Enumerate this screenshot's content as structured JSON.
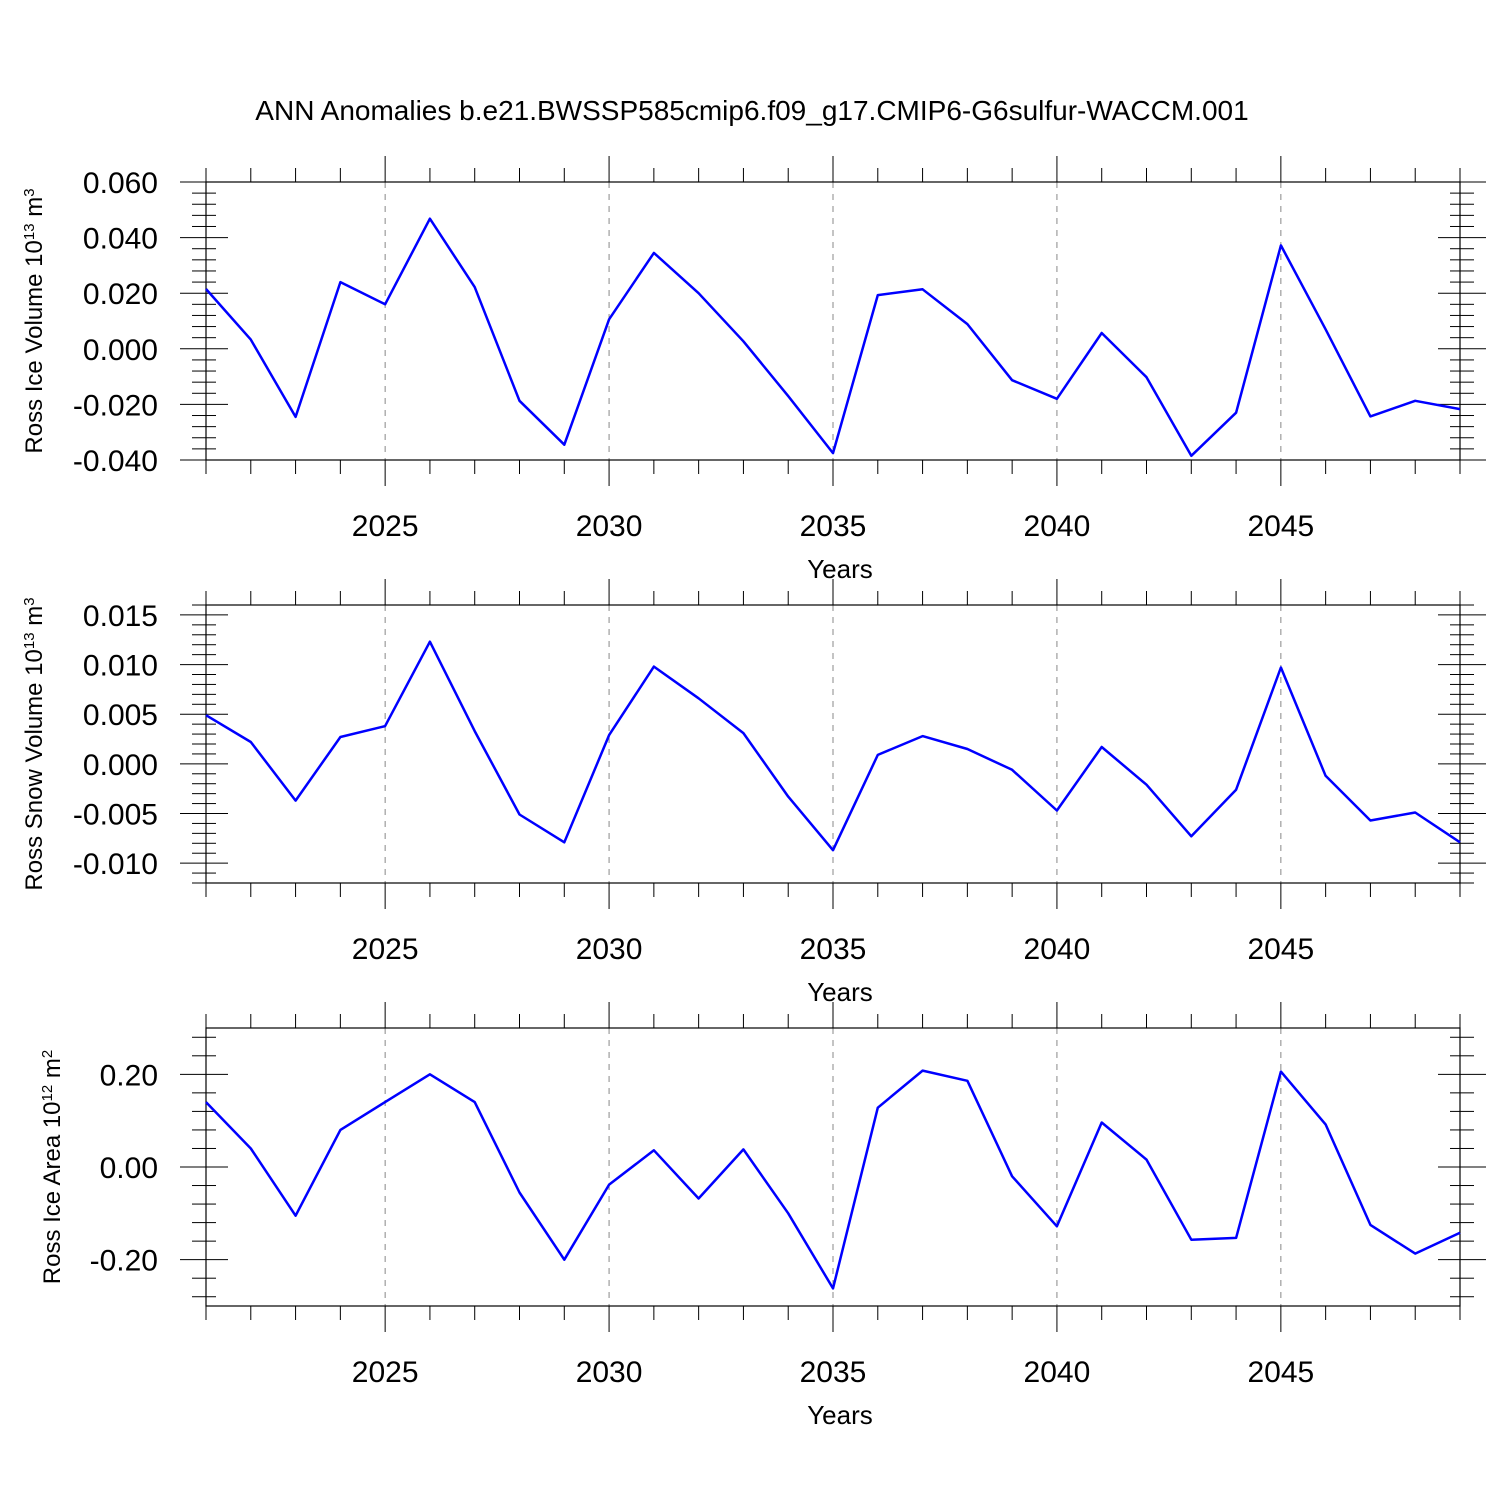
{
  "title": "ANN Anomalies b.e21.BWSSP585cmip6.f09_g17.CMIP6-G6sulfur-WACCM.001",
  "colors": {
    "line": "#0000ff",
    "axis": "#000000",
    "grid": "#888888"
  },
  "chart_data": [
    {
      "type": "line",
      "xlabel": "Years",
      "ylabel": {
        "text": "Ross Ice Volume 10",
        "exp": "13",
        "unit": " m",
        "unit_exp": "3"
      },
      "xlim": [
        2021,
        2049
      ],
      "ylim": [
        -0.04,
        0.06
      ],
      "xticks": [
        "2025",
        "2030",
        "2035",
        "2040",
        "2045"
      ],
      "yticks": [
        "0.060",
        "0.040",
        "0.020",
        "0.000",
        "-0.020",
        "-0.040"
      ],
      "grid": "vertical dashed at major x ticks",
      "series": [
        {
          "x": [
            2021,
            2022,
            2023,
            2024,
            2025,
            2026,
            2027,
            2028,
            2029,
            2030,
            2031,
            2032,
            2033,
            2034,
            2035,
            2036,
            2037,
            2038,
            2039,
            2040,
            2041,
            2042,
            2043,
            2044,
            2045,
            2046,
            2047,
            2048,
            2049
          ],
          "values": [
            0.0215,
            0.0033,
            -0.0245,
            0.024,
            0.016,
            0.0468,
            0.0222,
            -0.0187,
            -0.0345,
            0.0106,
            0.0345,
            0.02,
            0.0027,
            -0.017,
            -0.0375,
            0.0193,
            0.0214,
            0.0089,
            -0.0113,
            -0.018,
            0.0057,
            -0.0102,
            -0.0385,
            -0.023,
            0.0372,
            0.007,
            -0.0243,
            -0.0187,
            -0.0217
          ]
        }
      ]
    },
    {
      "type": "line",
      "xlabel": "Years",
      "ylabel": {
        "text": "Ross Snow Volume 10",
        "exp": "13",
        "unit": " m",
        "unit_exp": "3"
      },
      "xlim": [
        2021,
        2049
      ],
      "ylim": [
        -0.012,
        0.016
      ],
      "xticks": [
        "2025",
        "2030",
        "2035",
        "2040",
        "2045"
      ],
      "yticks": [
        "0.015",
        "0.010",
        "0.005",
        "0.000",
        "-0.005",
        "-0.010"
      ],
      "grid": "vertical dashed at major x ticks",
      "series": [
        {
          "x": [
            2021,
            2022,
            2023,
            2024,
            2025,
            2026,
            2027,
            2028,
            2029,
            2030,
            2031,
            2032,
            2033,
            2034,
            2035,
            2036,
            2037,
            2038,
            2039,
            2040,
            2041,
            2042,
            2043,
            2044,
            2045,
            2046,
            2047,
            2048,
            2049
          ],
          "values": [
            0.0049,
            0.0022,
            -0.0037,
            0.0027,
            0.0038,
            0.0123,
            0.0033,
            -0.0051,
            -0.0079,
            0.0029,
            0.0098,
            0.0066,
            0.0031,
            -0.0033,
            -0.0087,
            0.0009,
            0.0028,
            0.0015,
            -0.0006,
            -0.0047,
            0.0017,
            -0.0021,
            -0.0073,
            -0.0026,
            0.0097,
            -0.0012,
            -0.0057,
            -0.0049,
            -0.0079
          ]
        }
      ]
    },
    {
      "type": "line",
      "xlabel": "Years",
      "ylabel": {
        "text": "Ross Ice Area 10",
        "exp": "12",
        "unit": " m",
        "unit_exp": "2"
      },
      "xlim": [
        2021,
        2049
      ],
      "ylim": [
        -0.3,
        0.3
      ],
      "xticks": [
        "2025",
        "2030",
        "2035",
        "2040",
        "2045"
      ],
      "yticks": [
        "0.20",
        "0.00",
        "-0.20"
      ],
      "grid": "vertical dashed at major x ticks",
      "series": [
        {
          "x": [
            2021,
            2022,
            2023,
            2024,
            2025,
            2026,
            2027,
            2028,
            2029,
            2030,
            2031,
            2032,
            2033,
            2034,
            2035,
            2036,
            2037,
            2038,
            2039,
            2040,
            2041,
            2042,
            2043,
            2044,
            2045,
            2046,
            2047,
            2048,
            2049
          ],
          "values": [
            0.14,
            0.04,
            -0.105,
            0.08,
            0.14,
            0.2,
            0.14,
            -0.055,
            -0.2,
            -0.038,
            0.036,
            -0.068,
            0.038,
            -0.1,
            -0.262,
            0.128,
            0.208,
            0.186,
            -0.02,
            -0.128,
            0.096,
            0.016,
            -0.157,
            -0.153,
            0.206,
            0.092,
            -0.125,
            -0.187,
            -0.142
          ]
        }
      ]
    }
  ]
}
